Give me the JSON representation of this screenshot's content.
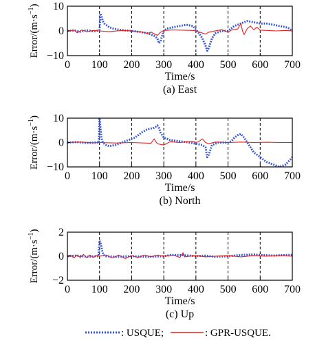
{
  "chart_data": [
    {
      "type": "line",
      "caption": "(a) East",
      "xlabel": "Time/s",
      "ylabel": "Error/(m·s",
      "ylabel_sup": "−1",
      "ylabel_close": ")",
      "xlim": [
        0,
        700
      ],
      "ylim": [
        -10,
        10
      ],
      "xticks": [
        0,
        100,
        200,
        300,
        400,
        500,
        600,
        700
      ],
      "yticks": [
        -10,
        0,
        10
      ],
      "vlines": [
        100,
        200,
        300,
        400,
        500,
        600
      ],
      "series": [
        {
          "name": "USQUE",
          "color": "#3355dd",
          "style": "dotted",
          "points": [
            [
              0,
              0
            ],
            [
              20,
              0.2
            ],
            [
              40,
              -0.3
            ],
            [
              60,
              0.3
            ],
            [
              80,
              -0.2
            ],
            [
              95,
              0.1
            ],
            [
              100,
              0.5
            ],
            [
              103,
              7
            ],
            [
              106,
              6
            ],
            [
              110,
              4
            ],
            [
              115,
              3
            ],
            [
              120,
              2.5
            ],
            [
              130,
              1.5
            ],
            [
              140,
              1
            ],
            [
              160,
              0.5
            ],
            [
              180,
              0.2
            ],
            [
              200,
              0
            ],
            [
              230,
              -0.5
            ],
            [
              250,
              -1
            ],
            [
              270,
              -2
            ],
            [
              280,
              -3
            ],
            [
              285,
              -5
            ],
            [
              290,
              -4
            ],
            [
              300,
              0
            ],
            [
              310,
              1
            ],
            [
              330,
              1.5
            ],
            [
              350,
              2
            ],
            [
              370,
              2.5
            ],
            [
              390,
              2
            ],
            [
              400,
              0.5
            ],
            [
              410,
              -1
            ],
            [
              420,
              -3
            ],
            [
              430,
              -6
            ],
            [
              435,
              -8
            ],
            [
              440,
              -7
            ],
            [
              450,
              -3
            ],
            [
              460,
              -1
            ],
            [
              480,
              0
            ],
            [
              500,
              0
            ],
            [
              510,
              1
            ],
            [
              520,
              2
            ],
            [
              540,
              3
            ],
            [
              560,
              4
            ],
            [
              580,
              3.5
            ],
            [
              600,
              3
            ],
            [
              620,
              3
            ],
            [
              640,
              2.5
            ],
            [
              660,
              2
            ],
            [
              680,
              1.5
            ],
            [
              690,
              1
            ],
            [
              700,
              0
            ]
          ]
        },
        {
          "name": "GPR-USQUE",
          "color": "#dd2222",
          "style": "solid",
          "points": [
            [
              0,
              0
            ],
            [
              25,
              0.3
            ],
            [
              30,
              -0.8
            ],
            [
              45,
              0.4
            ],
            [
              60,
              -0.3
            ],
            [
              80,
              0.2
            ],
            [
              100,
              0
            ],
            [
              130,
              -0.3
            ],
            [
              170,
              0.2
            ],
            [
              200,
              0
            ],
            [
              230,
              -0.4
            ],
            [
              250,
              -1
            ],
            [
              260,
              -0.5
            ],
            [
              280,
              -1.8
            ],
            [
              290,
              -0.5
            ],
            [
              300,
              0.2
            ],
            [
              330,
              0.4
            ],
            [
              360,
              0.3
            ],
            [
              390,
              0.2
            ],
            [
              400,
              0
            ],
            [
              430,
              -1.3
            ],
            [
              440,
              -0.5
            ],
            [
              480,
              0.5
            ],
            [
              490,
              0
            ],
            [
              500,
              -0.5
            ],
            [
              510,
              0.3
            ],
            [
              530,
              0.8
            ],
            [
              540,
              3
            ],
            [
              545,
              0
            ],
            [
              550,
              -1.5
            ],
            [
              560,
              1
            ],
            [
              570,
              2
            ],
            [
              580,
              0.5
            ],
            [
              590,
              1.5
            ],
            [
              600,
              0.3
            ],
            [
              620,
              0.2
            ],
            [
              650,
              0
            ],
            [
              680,
              0.2
            ],
            [
              700,
              0
            ]
          ]
        }
      ]
    },
    {
      "type": "line",
      "caption": "(b) North",
      "xlabel": "Time/s",
      "ylabel": "Error/(m·s",
      "ylabel_sup": "−1",
      "ylabel_close": ")",
      "xlim": [
        0,
        700
      ],
      "ylim": [
        -10,
        10
      ],
      "xticks": [
        0,
        100,
        200,
        300,
        400,
        500,
        600,
        700
      ],
      "yticks": [
        -10,
        0,
        10
      ],
      "vlines": [
        100,
        200,
        300,
        400,
        500,
        600
      ],
      "series": [
        {
          "name": "USQUE",
          "color": "#3355dd",
          "style": "dotted",
          "points": [
            [
              0,
              0
            ],
            [
              30,
              0.2
            ],
            [
              60,
              -0.2
            ],
            [
              90,
              0
            ],
            [
              98,
              0
            ],
            [
              100,
              10
            ],
            [
              103,
              6
            ],
            [
              106,
              2
            ],
            [
              110,
              0
            ],
            [
              120,
              -1
            ],
            [
              130,
              -1.5
            ],
            [
              150,
              -1
            ],
            [
              170,
              0
            ],
            [
              190,
              1
            ],
            [
              210,
              2
            ],
            [
              230,
              4
            ],
            [
              250,
              5.5
            ],
            [
              270,
              6
            ],
            [
              280,
              7
            ],
            [
              285,
              6
            ],
            [
              290,
              4
            ],
            [
              300,
              2
            ],
            [
              320,
              1
            ],
            [
              350,
              0.5
            ],
            [
              380,
              0
            ],
            [
              400,
              -0.5
            ],
            [
              420,
              -1
            ],
            [
              430,
              -2
            ],
            [
              435,
              -6
            ],
            [
              440,
              -5
            ],
            [
              450,
              -1
            ],
            [
              470,
              0
            ],
            [
              490,
              0
            ],
            [
              500,
              0
            ],
            [
              510,
              0.5
            ],
            [
              520,
              2
            ],
            [
              530,
              3
            ],
            [
              540,
              3.5
            ],
            [
              550,
              2
            ],
            [
              560,
              0
            ],
            [
              580,
              -4
            ],
            [
              600,
              -6
            ],
            [
              620,
              -8
            ],
            [
              640,
              -9
            ],
            [
              660,
              -10
            ],
            [
              680,
              -9
            ],
            [
              700,
              -6
            ]
          ]
        },
        {
          "name": "GPR-USQUE",
          "color": "#dd2222",
          "style": "solid",
          "points": [
            [
              0,
              0
            ],
            [
              40,
              0.2
            ],
            [
              80,
              -0.1
            ],
            [
              100,
              0
            ],
            [
              150,
              -0.2
            ],
            [
              200,
              0
            ],
            [
              260,
              -0.3
            ],
            [
              270,
              1.5
            ],
            [
              280,
              -0.5
            ],
            [
              300,
              -1
            ],
            [
              320,
              0.3
            ],
            [
              350,
              0
            ],
            [
              390,
              0.5
            ],
            [
              400,
              0
            ],
            [
              410,
              0.5
            ],
            [
              420,
              1.5
            ],
            [
              430,
              0
            ],
            [
              440,
              -0.5
            ],
            [
              460,
              0.2
            ],
            [
              500,
              0
            ],
            [
              540,
              0.2
            ],
            [
              580,
              0
            ],
            [
              620,
              0.1
            ],
            [
              660,
              0
            ],
            [
              700,
              0
            ]
          ]
        }
      ]
    },
    {
      "type": "line",
      "caption": "(c) Up",
      "xlabel": "Time/s",
      "ylabel": "Error/(m·s",
      "ylabel_sup": "−1",
      "ylabel_close": ")",
      "xlim": [
        0,
        700
      ],
      "ylim": [
        -2,
        2
      ],
      "xticks": [
        0,
        100,
        200,
        300,
        400,
        500,
        600,
        700
      ],
      "yticks": [
        -2,
        0,
        2
      ],
      "vlines": [
        100,
        200,
        300,
        400,
        500,
        600
      ],
      "series": [
        {
          "name": "USQUE",
          "color": "#3355dd",
          "style": "dotted",
          "points": [
            [
              0,
              0
            ],
            [
              30,
              0.05
            ],
            [
              60,
              -0.05
            ],
            [
              90,
              0
            ],
            [
              97,
              0
            ],
            [
              100,
              1.3
            ],
            [
              104,
              1
            ],
            [
              108,
              0.5
            ],
            [
              112,
              0.1
            ],
            [
              120,
              0
            ],
            [
              150,
              -0.05
            ],
            [
              200,
              0
            ],
            [
              250,
              -0.05
            ],
            [
              300,
              0
            ],
            [
              320,
              0.1
            ],
            [
              350,
              0.1
            ],
            [
              380,
              0.05
            ],
            [
              400,
              0
            ],
            [
              430,
              0.05
            ],
            [
              460,
              -0.05
            ],
            [
              500,
              0
            ],
            [
              540,
              0.1
            ],
            [
              580,
              0.15
            ],
            [
              600,
              0.1
            ],
            [
              640,
              0.05
            ],
            [
              680,
              0.1
            ],
            [
              700,
              0.1
            ]
          ]
        },
        {
          "name": "GPR-USQUE",
          "color": "#dd2222",
          "style": "solid",
          "points": [
            [
              0,
              0
            ],
            [
              10,
              0.1
            ],
            [
              20,
              -0.15
            ],
            [
              30,
              0.1
            ],
            [
              40,
              -0.1
            ],
            [
              50,
              0.15
            ],
            [
              60,
              -0.1
            ],
            [
              70,
              0.1
            ],
            [
              80,
              -0.1
            ],
            [
              90,
              0.05
            ],
            [
              100,
              0
            ],
            [
              120,
              0.1
            ],
            [
              140,
              -0.15
            ],
            [
              160,
              0.1
            ],
            [
              180,
              -0.2
            ],
            [
              200,
              0.05
            ],
            [
              220,
              -0.1
            ],
            [
              240,
              0.1
            ],
            [
              260,
              -0.05
            ],
            [
              280,
              0.1
            ],
            [
              300,
              0
            ],
            [
              330,
              0.1
            ],
            [
              350,
              -0.1
            ],
            [
              360,
              0.3
            ],
            [
              365,
              -0.05
            ],
            [
              380,
              0
            ],
            [
              400,
              0.05
            ],
            [
              430,
              -0.05
            ],
            [
              460,
              0
            ],
            [
              500,
              0.05
            ],
            [
              540,
              -0.05
            ],
            [
              580,
              0.05
            ],
            [
              620,
              0
            ],
            [
              660,
              0.05
            ],
            [
              700,
              0
            ]
          ]
        }
      ]
    }
  ],
  "legend": {
    "usque_label": ": USQUE;",
    "gpr_label": ": GPR-USQUE.",
    "usque_color": "#3355dd",
    "gpr_color": "#dd2222"
  }
}
